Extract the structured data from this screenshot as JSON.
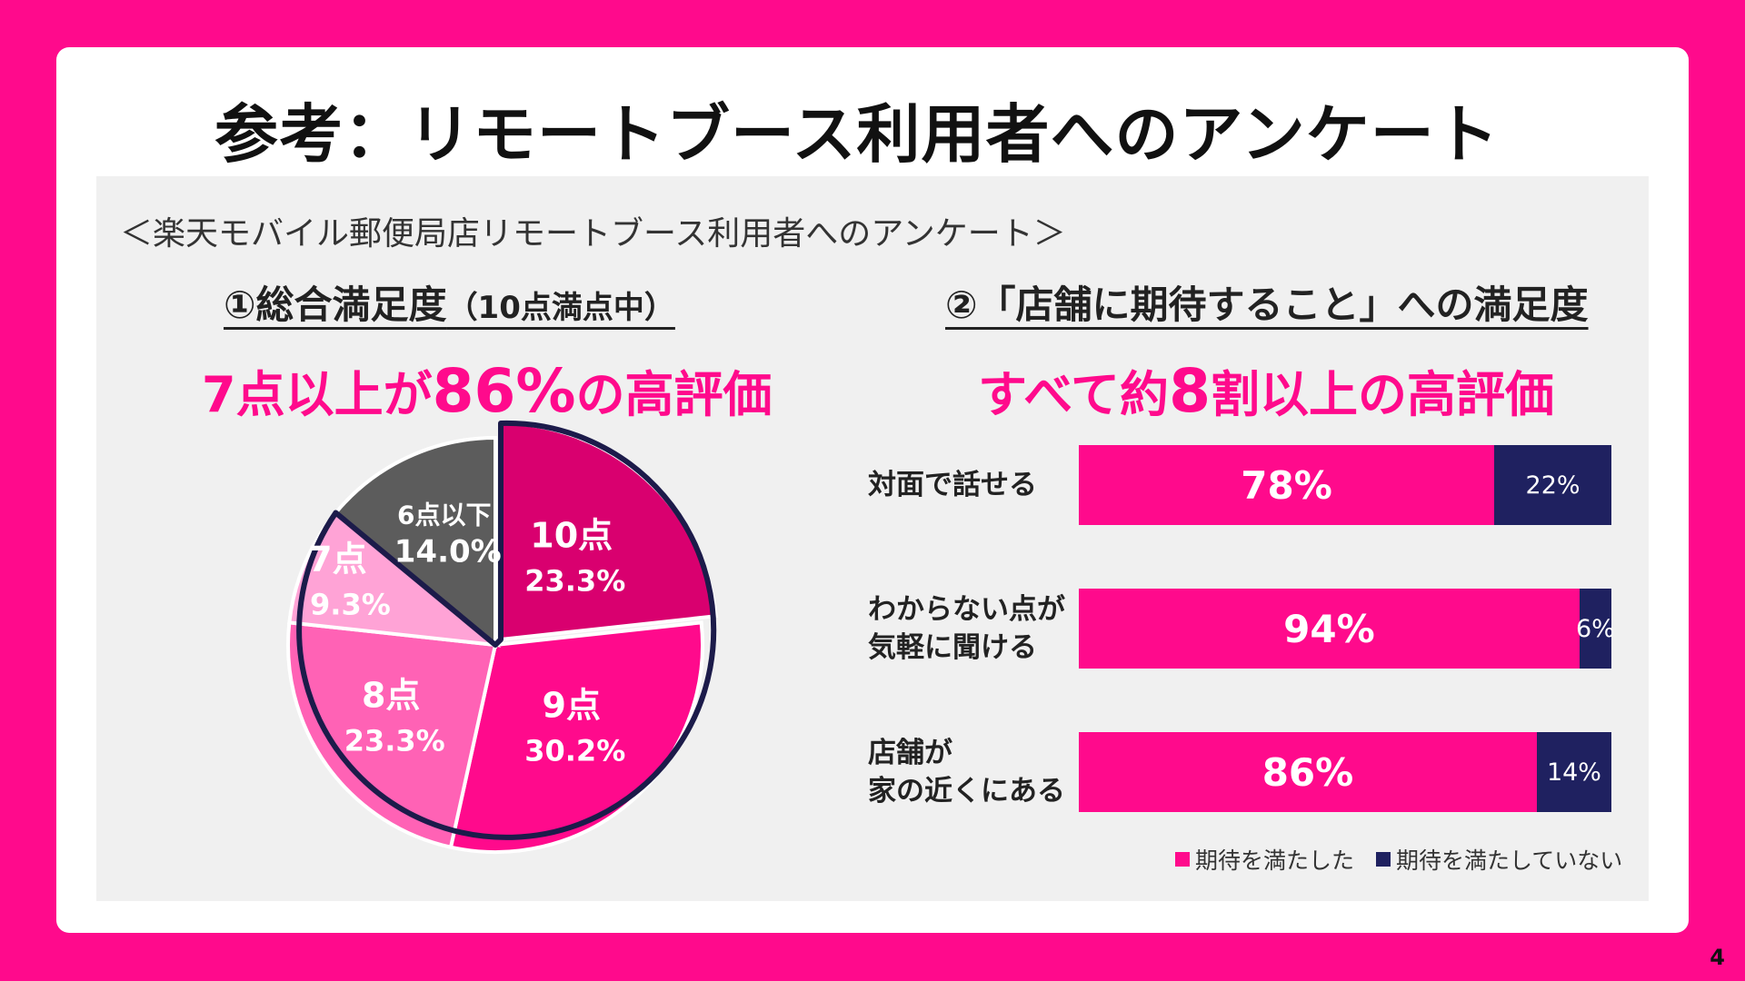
{
  "slide": {
    "title": "参考：リモートブース利用者へのアンケート",
    "survey_name": "＜楽天モバイル郵便局店リモートブース利用者へのアンケート＞",
    "page_number": "4"
  },
  "left_section": {
    "title_main": "①総合満足度",
    "title_sub": "（10点満点中）",
    "headline_part1": "7点以上が",
    "headline_big": "86%",
    "headline_part2": "の高評価"
  },
  "right_section": {
    "title": "②「店舗に期待すること」への満足度",
    "headline_part1": "すべて約",
    "headline_big": "8",
    "headline_part2": "割以上の高評価"
  },
  "colors": {
    "brand_pink": "#ff0a8c",
    "navy": "#1f2160",
    "outline": "#1c1b4a",
    "score_10": "#d9006f",
    "score_9": "#ff0a8c",
    "score_8": "#ff62b5",
    "score_7": "#ffa3d6",
    "score_6_or_less": "#5c5c5c"
  },
  "chart_data": [
    {
      "type": "pie",
      "title": "①総合満足度（10点満点中）",
      "categories": [
        "10点",
        "9点",
        "8点",
        "7点",
        "6点以下"
      ],
      "values": [
        23.3,
        30.2,
        23.3,
        9.3,
        14.0
      ],
      "labels": [
        "23.3%",
        "30.2%",
        "23.3%",
        "9.3%",
        "14.0%"
      ],
      "highlighted": [
        "10点",
        "9点",
        "8点",
        "7点"
      ]
    },
    {
      "type": "bar",
      "orientation": "horizontal",
      "stacked": true,
      "title": "②「店舗に期待すること」への満足度",
      "categories": [
        [
          "対面で話せる"
        ],
        [
          "わからない点が",
          "気軽に聞ける"
        ],
        [
          "店舗が",
          "家の近くにある"
        ]
      ],
      "series": [
        {
          "name": "期待を満たした",
          "values": [
            78,
            94,
            86
          ],
          "labels": [
            "78%",
            "94%",
            "86%"
          ]
        },
        {
          "name": "期待を満たしていない",
          "values": [
            22,
            6,
            14
          ],
          "labels": [
            "22%",
            "6%",
            "14%"
          ]
        }
      ],
      "xlim": [
        0,
        100
      ]
    }
  ]
}
